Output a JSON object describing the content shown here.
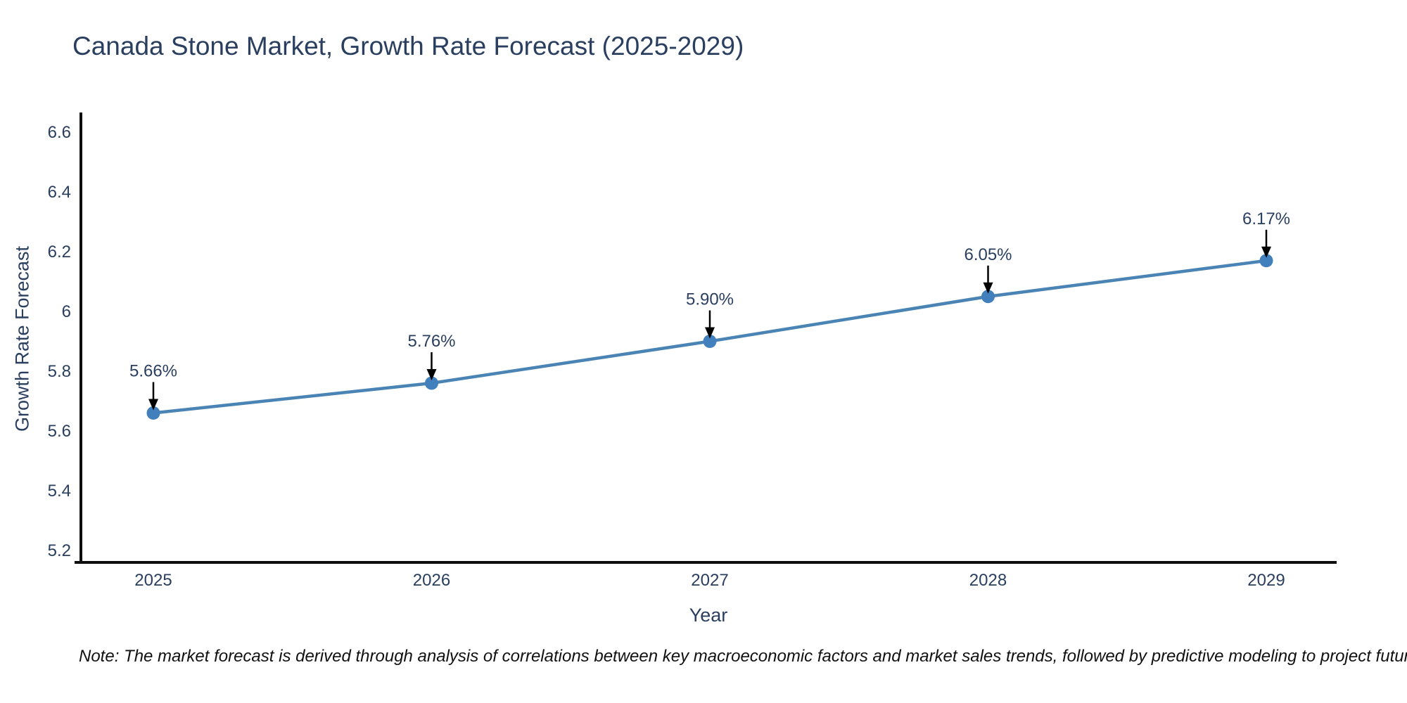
{
  "note": "Note: The market forecast is derived through analysis of correlations between key macroeconomic factors and market sales trends, followed by predictive modeling to project future sales",
  "chart_data": {
    "type": "line",
    "title": "Canada Stone Market, Growth Rate Forecast (2025-2029)",
    "xlabel": "Year",
    "ylabel": "Growth Rate Forecast",
    "x": [
      2025,
      2026,
      2027,
      2028,
      2029
    ],
    "values": [
      5.66,
      5.76,
      5.9,
      6.05,
      6.17
    ],
    "point_labels": [
      "5.66%",
      "5.76%",
      "5.90%",
      "6.05%",
      "6.17%"
    ],
    "y_ticks": [
      5.2,
      5.4,
      5.6,
      5.8,
      6,
      6.2,
      6.4,
      6.6
    ],
    "ylim": [
      5.16,
      6.67
    ],
    "grid": false,
    "legend": "none",
    "colors": {
      "line": "#4a84b4",
      "marker": "#4180bc",
      "axis": "#0d0d0d",
      "text": "#2a3f5f",
      "annotation_arrow": "#000000"
    }
  }
}
